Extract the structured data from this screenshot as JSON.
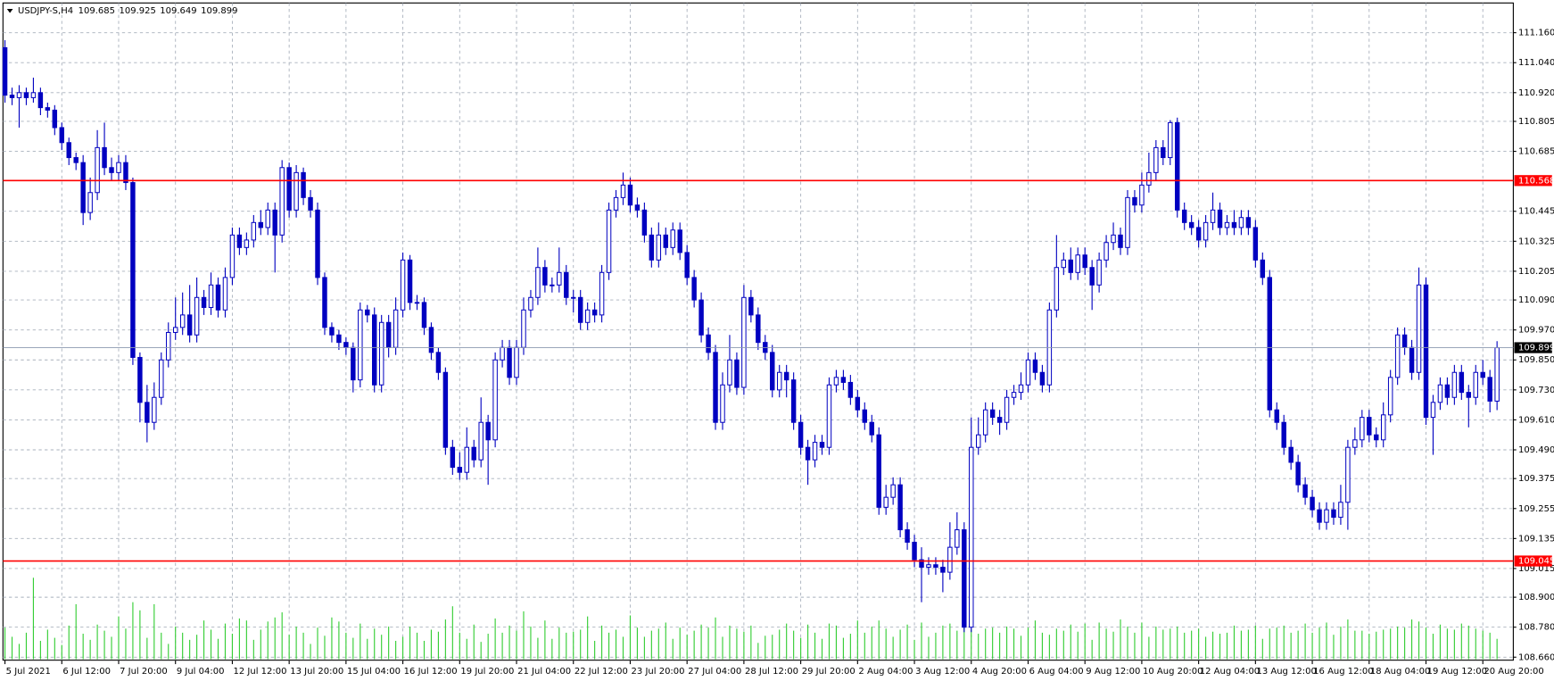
{
  "chart_data": {
    "type": "candlestick",
    "title": "USDJPY-S,H4",
    "up_color": "#0000c0",
    "down_color": "#0000c0",
    "up_fill": "#ffffff",
    "volume_color": "#32cd32",
    "grid": true,
    "ylim": [
      108.648,
      111.279
    ],
    "yticks": [
      {
        "value": 111.16,
        "label": "111.160"
      },
      {
        "value": 111.04,
        "label": "111.040"
      },
      {
        "value": 110.92,
        "label": "110.920"
      },
      {
        "value": 110.805,
        "label": "110.805"
      },
      {
        "value": 110.685,
        "label": "110.685"
      },
      {
        "value": 110.445,
        "label": "110.445"
      },
      {
        "value": 110.325,
        "label": "110.325"
      },
      {
        "value": 110.205,
        "label": "110.205"
      },
      {
        "value": 110.09,
        "label": "110.090"
      },
      {
        "value": 109.97,
        "label": "109.970"
      },
      {
        "value": 109.85,
        "label": "109.850"
      },
      {
        "value": 109.73,
        "label": "109.730"
      },
      {
        "value": 109.61,
        "label": "109.610"
      },
      {
        "value": 109.49,
        "label": "109.490"
      },
      {
        "value": 109.375,
        "label": "109.375"
      },
      {
        "value": 109.255,
        "label": "109.255"
      },
      {
        "value": 109.135,
        "label": "109.135"
      },
      {
        "value": 109.015,
        "label": "109.015"
      },
      {
        "value": 108.9,
        "label": "108.900"
      },
      {
        "value": 108.78,
        "label": "108.780"
      },
      {
        "value": 108.66,
        "label": "108.660"
      }
    ],
    "levels": [
      {
        "value": 110.568,
        "color": "#ff0000"
      },
      {
        "value": 109.045,
        "color": "#ff0000"
      }
    ],
    "categories": [
      "5 Jul 2021",
      null,
      null,
      null,
      null,
      null,
      null,
      null,
      "6 Jul 12:00",
      null,
      null,
      null,
      null,
      null,
      null,
      null,
      "7 Jul 20:00",
      null,
      null,
      null,
      null,
      null,
      null,
      null,
      "9 Jul 04:00",
      null,
      null,
      null,
      null,
      null,
      null,
      null,
      "12 Jul 12:00",
      null,
      null,
      null,
      null,
      null,
      null,
      null,
      "13 Jul 20:00",
      null,
      null,
      null,
      null,
      null,
      null,
      null,
      "15 Jul 04:00",
      null,
      null,
      null,
      null,
      null,
      null,
      null,
      "16 Jul 12:00",
      null,
      null,
      null,
      null,
      null,
      null,
      null,
      "19 Jul 20:00",
      null,
      null,
      null,
      null,
      null,
      null,
      null,
      "21 Jul 04:00",
      null,
      null,
      null,
      null,
      null,
      null,
      null,
      "22 Jul 12:00",
      null,
      null,
      null,
      null,
      null,
      null,
      null,
      "23 Jul 20:00",
      null,
      null,
      null,
      null,
      null,
      null,
      null,
      "27 Jul 04:00",
      null,
      null,
      null,
      null,
      null,
      null,
      null,
      "28 Jul 12:00",
      null,
      null,
      null,
      null,
      null,
      null,
      null,
      "29 Jul 20:00",
      null,
      null,
      null,
      null,
      null,
      null,
      null,
      "2 Aug 04:00",
      null,
      null,
      null,
      null,
      null,
      null,
      null,
      "3 Aug 12:00",
      null,
      null,
      null,
      null,
      null,
      null,
      null,
      "4 Aug 20:00",
      null,
      null,
      null,
      null,
      null,
      null,
      null,
      "6 Aug 04:00",
      null,
      null,
      null,
      null,
      null,
      null,
      null,
      "9 Aug 12:00",
      null,
      null,
      null,
      null,
      null,
      null,
      null,
      "10 Aug 20:00",
      null,
      null,
      null,
      null,
      null,
      null,
      null,
      "12 Aug 04:00",
      null,
      null,
      null,
      null,
      null,
      null,
      null,
      "13 Aug 12:00",
      null,
      null,
      null,
      null,
      null,
      null,
      null,
      "16 Aug 12:00",
      null,
      null,
      null,
      null,
      null,
      null,
      null,
      "18 Aug 04:00",
      null,
      null,
      null,
      null,
      null,
      null,
      null,
      "19 Aug 12:00",
      null,
      null,
      null,
      null,
      null,
      null,
      null,
      "20 Aug 20:00",
      null,
      null
    ],
    "open": [
      111.1,
      110.91,
      110.9,
      110.92,
      110.9,
      110.92,
      110.86,
      110.85,
      110.78,
      110.72,
      110.66,
      110.64,
      110.44,
      110.52,
      110.7,
      110.62,
      110.6,
      110.64,
      110.56,
      109.86,
      109.68,
      109.6,
      109.7,
      109.85,
      109.96,
      109.98,
      110.03,
      109.95,
      110.1,
      110.06,
      110.15,
      110.05,
      110.18,
      110.35,
      110.3,
      110.33,
      110.4,
      110.38,
      110.45,
      110.35,
      110.62,
      110.45,
      110.6,
      110.5,
      110.45,
      110.18,
      109.98,
      109.95,
      109.92,
      109.9,
      109.77,
      110.05,
      110.03,
      109.75,
      110.0,
      109.9,
      110.05,
      110.25,
      110.08,
      110.08,
      109.98,
      109.88,
      109.8,
      109.5,
      109.42,
      109.4,
      109.5,
      109.45,
      109.6,
      109.53,
      109.85,
      109.9,
      109.78,
      109.9,
      110.05,
      110.1,
      110.22,
      110.15,
      110.15,
      110.2,
      110.1,
      110.1,
      110.0,
      110.05,
      110.03,
      110.2,
      110.45,
      110.5,
      110.55,
      110.47,
      110.45,
      110.35,
      110.25,
      110.35,
      110.3,
      110.37,
      110.28,
      110.18,
      110.09,
      109.95,
      109.88,
      109.6,
      109.75,
      109.85,
      109.74,
      110.1,
      110.03,
      109.92,
      109.88,
      109.73,
      109.8,
      109.77,
      109.6,
      109.5,
      109.45,
      109.52,
      109.5,
      109.75,
      109.78,
      109.76,
      109.7,
      109.65,
      109.6,
      109.55,
      109.26,
      109.3,
      109.35,
      109.17,
      109.12,
      109.05,
      109.02,
      109.03,
      109.02,
      109.0,
      109.1,
      109.17,
      108.78,
      109.5,
      109.55,
      109.65,
      109.62,
      109.6,
      109.7,
      109.72,
      109.75,
      109.85,
      109.8,
      109.75,
      110.05,
      110.22,
      110.25,
      110.2,
      110.27,
      110.22,
      110.15,
      110.25,
      110.32,
      110.35,
      110.3,
      110.5,
      110.47,
      110.55,
      110.6,
      110.7,
      110.66,
      110.8,
      110.45,
      110.4,
      110.38,
      110.33,
      110.4,
      110.45,
      110.38,
      110.4,
      110.38,
      110.42,
      110.38,
      110.25,
      110.18,
      109.65,
      109.6,
      109.5,
      109.44,
      109.35,
      109.3,
      109.25,
      109.2,
      109.25,
      109.22,
      109.28,
      109.5,
      109.53,
      109.62,
      109.55,
      109.53,
      109.63,
      109.78,
      109.95,
      109.9,
      109.8,
      110.15,
      109.62,
      109.68,
      109.75,
      109.7,
      109.8,
      109.72,
      109.7,
      109.8,
      109.78,
      109.685
    ],
    "high": [
      111.13,
      110.94,
      110.95,
      110.94,
      110.98,
      110.94,
      110.88,
      110.87,
      110.8,
      110.74,
      110.68,
      110.67,
      110.58,
      110.77,
      110.8,
      110.66,
      110.67,
      110.67,
      110.58,
      109.88,
      109.75,
      109.76,
      109.88,
      110.0,
      110.1,
      110.12,
      110.15,
      110.18,
      110.13,
      110.2,
      110.18,
      110.22,
      110.38,
      110.38,
      110.36,
      110.43,
      110.45,
      110.48,
      110.48,
      110.65,
      110.64,
      110.63,
      110.62,
      110.53,
      110.48,
      110.2,
      110.0,
      109.97,
      109.94,
      109.92,
      110.08,
      110.07,
      110.06,
      110.03,
      110.03,
      110.1,
      110.28,
      110.27,
      110.11,
      110.1,
      110.0,
      109.9,
      109.82,
      109.53,
      109.48,
      109.58,
      109.53,
      109.7,
      109.63,
      109.88,
      109.93,
      109.93,
      109.93,
      110.1,
      110.13,
      110.3,
      110.25,
      110.18,
      110.3,
      110.23,
      110.13,
      110.13,
      110.08,
      110.08,
      110.23,
      110.48,
      110.53,
      110.6,
      110.58,
      110.5,
      110.48,
      110.38,
      110.4,
      110.38,
      110.4,
      110.4,
      110.31,
      110.21,
      110.12,
      109.98,
      109.91,
      109.8,
      109.95,
      109.88,
      110.15,
      110.13,
      110.06,
      109.95,
      109.91,
      109.83,
      109.83,
      109.8,
      109.63,
      109.53,
      109.55,
      109.55,
      109.78,
      109.81,
      109.81,
      109.79,
      109.73,
      109.68,
      109.63,
      109.58,
      109.35,
      109.38,
      109.38,
      109.2,
      109.15,
      109.1,
      109.06,
      109.06,
      109.05,
      109.2,
      109.24,
      109.2,
      109.62,
      109.62,
      109.68,
      109.68,
      109.65,
      109.73,
      109.75,
      109.8,
      109.88,
      109.88,
      109.83,
      110.08,
      110.35,
      110.28,
      110.3,
      110.3,
      110.3,
      110.25,
      110.28,
      110.35,
      110.4,
      110.38,
      110.53,
      110.53,
      110.6,
      110.68,
      110.73,
      110.73,
      110.81,
      110.82,
      110.48,
      110.43,
      110.41,
      110.43,
      110.52,
      110.48,
      110.43,
      110.45,
      110.45,
      110.45,
      110.41,
      110.28,
      110.21,
      109.68,
      109.63,
      109.53,
      109.47,
      109.38,
      109.33,
      109.28,
      109.28,
      109.28,
      109.35,
      109.53,
      109.58,
      109.65,
      109.65,
      109.58,
      109.68,
      109.81,
      109.98,
      109.98,
      109.93,
      110.22,
      110.18,
      109.71,
      109.78,
      109.78,
      109.83,
      109.83,
      109.75,
      109.83,
      109.85,
      109.81,
      109.925
    ],
    "low": [
      110.88,
      110.87,
      110.78,
      110.87,
      110.88,
      110.83,
      110.82,
      110.75,
      110.69,
      110.63,
      110.61,
      110.39,
      110.41,
      110.49,
      110.59,
      110.57,
      110.57,
      110.53,
      109.83,
      109.6,
      109.52,
      109.57,
      109.67,
      109.82,
      109.93,
      109.95,
      109.92,
      109.92,
      110.03,
      110.03,
      110.02,
      110.02,
      110.15,
      110.27,
      110.27,
      110.3,
      110.35,
      110.35,
      110.2,
      110.32,
      110.42,
      110.42,
      110.47,
      110.42,
      110.15,
      109.95,
      109.92,
      109.89,
      109.87,
      109.72,
      109.74,
      110.0,
      109.72,
      109.72,
      109.86,
      109.87,
      110.02,
      110.05,
      110.05,
      109.95,
      109.85,
      109.77,
      109.47,
      109.39,
      109.37,
      109.37,
      109.42,
      109.42,
      109.35,
      109.5,
      109.82,
      109.75,
      109.75,
      109.87,
      110.02,
      110.07,
      110.12,
      110.12,
      110.12,
      110.07,
      110.04,
      109.97,
      109.97,
      110.0,
      110.0,
      110.17,
      110.42,
      110.47,
      110.44,
      110.42,
      110.32,
      110.22,
      110.22,
      110.27,
      110.27,
      110.25,
      110.15,
      110.06,
      109.92,
      109.85,
      109.57,
      109.57,
      109.72,
      109.71,
      109.71,
      110.0,
      109.89,
      109.85,
      109.7,
      109.7,
      109.7,
      109.57,
      109.47,
      109.35,
      109.42,
      109.47,
      109.47,
      109.72,
      109.73,
      109.67,
      109.62,
      109.57,
      109.52,
      109.23,
      109.23,
      109.27,
      109.14,
      109.09,
      109.02,
      108.88,
      108.99,
      108.99,
      108.92,
      108.97,
      109.07,
      108.76,
      108.76,
      109.47,
      109.52,
      109.59,
      109.55,
      109.57,
      109.67,
      109.69,
      109.72,
      109.77,
      109.72,
      109.72,
      110.02,
      110.19,
      110.17,
      110.17,
      110.19,
      110.05,
      110.12,
      110.22,
      110.29,
      110.27,
      110.27,
      110.44,
      110.44,
      110.52,
      110.57,
      110.63,
      110.63,
      110.42,
      110.37,
      110.35,
      110.3,
      110.3,
      110.37,
      110.35,
      110.35,
      110.35,
      110.35,
      110.35,
      110.22,
      110.15,
      109.62,
      109.57,
      109.47,
      109.41,
      109.32,
      109.27,
      109.22,
      109.17,
      109.17,
      109.19,
      109.19,
      109.17,
      109.47,
      109.5,
      109.52,
      109.5,
      109.5,
      109.6,
      109.75,
      109.87,
      109.77,
      109.77,
      109.59,
      109.47,
      109.65,
      109.67,
      109.67,
      109.69,
      109.58,
      109.67,
      109.75,
      109.64,
      109.649
    ],
    "close": [
      110.91,
      110.9,
      110.92,
      110.9,
      110.92,
      110.86,
      110.85,
      110.78,
      110.72,
      110.66,
      110.64,
      110.44,
      110.52,
      110.7,
      110.62,
      110.6,
      110.64,
      110.56,
      109.86,
      109.68,
      109.6,
      109.7,
      109.85,
      109.96,
      109.98,
      110.03,
      109.95,
      110.1,
      110.06,
      110.15,
      110.05,
      110.18,
      110.35,
      110.3,
      110.33,
      110.4,
      110.38,
      110.45,
      110.35,
      110.62,
      110.45,
      110.6,
      110.5,
      110.45,
      110.18,
      109.98,
      109.95,
      109.92,
      109.9,
      109.77,
      110.05,
      110.03,
      109.75,
      110.0,
      109.9,
      110.05,
      110.25,
      110.08,
      110.08,
      109.98,
      109.88,
      109.8,
      109.5,
      109.42,
      109.4,
      109.5,
      109.45,
      109.6,
      109.53,
      109.85,
      109.9,
      109.78,
      109.9,
      110.05,
      110.1,
      110.22,
      110.15,
      110.15,
      110.2,
      110.1,
      110.1,
      110.0,
      110.05,
      110.03,
      110.2,
      110.45,
      110.5,
      110.55,
      110.47,
      110.45,
      110.35,
      110.25,
      110.35,
      110.3,
      110.37,
      110.28,
      110.18,
      110.09,
      109.95,
      109.88,
      109.6,
      109.75,
      109.85,
      109.74,
      110.1,
      110.03,
      109.92,
      109.88,
      109.73,
      109.8,
      109.77,
      109.6,
      109.5,
      109.45,
      109.52,
      109.5,
      109.75,
      109.78,
      109.76,
      109.7,
      109.65,
      109.6,
      109.55,
      109.26,
      109.3,
      109.35,
      109.17,
      109.12,
      109.05,
      109.02,
      109.03,
      109.02,
      109.0,
      109.1,
      109.17,
      108.78,
      109.5,
      109.55,
      109.65,
      109.62,
      109.6,
      109.7,
      109.72,
      109.75,
      109.85,
      109.8,
      109.75,
      110.05,
      110.22,
      110.25,
      110.2,
      110.27,
      110.22,
      110.15,
      110.25,
      110.32,
      110.35,
      110.3,
      110.5,
      110.47,
      110.55,
      110.6,
      110.7,
      110.66,
      110.8,
      110.45,
      110.4,
      110.38,
      110.33,
      110.4,
      110.45,
      110.38,
      110.4,
      110.38,
      110.42,
      110.38,
      110.25,
      110.18,
      109.65,
      109.6,
      109.5,
      109.44,
      109.35,
      109.3,
      109.25,
      109.2,
      109.25,
      109.22,
      109.28,
      109.5,
      109.53,
      109.62,
      109.55,
      109.53,
      109.63,
      109.78,
      109.95,
      109.9,
      109.8,
      110.15,
      109.62,
      109.68,
      109.75,
      109.7,
      109.8,
      109.72,
      109.7,
      109.8,
      109.78,
      109.685,
      109.899
    ],
    "volume": [
      3100,
      2200,
      1500,
      2600,
      8000,
      1800,
      2900,
      2100,
      1400,
      3300,
      5400,
      2500,
      1900,
      3400,
      2800,
      2200,
      4200,
      3000,
      5600,
      4800,
      2100,
      5400,
      2600,
      1500,
      3200,
      2600,
      1900,
      2400,
      3800,
      2900,
      2000,
      3500,
      2500,
      4000,
      3800,
      1900,
      2900,
      3700,
      4100,
      4600,
      2400,
      3200,
      2600,
      1500,
      3100,
      2300,
      4100,
      3700,
      2600,
      2100,
      3500,
      2000,
      3000,
      2400,
      3200,
      1800,
      2200,
      3200,
      2600,
      1800,
      2900,
      2700,
      3900,
      5200,
      2600,
      2000,
      3400,
      1700,
      2500,
      4000,
      2600,
      3300,
      2800,
      4700,
      3200,
      2100,
      3800,
      2000,
      3100,
      2600,
      2700,
      2900,
      4200,
      1800,
      3300,
      2600,
      2900,
      2200,
      4300,
      3100,
      2200,
      2800,
      3000,
      3600,
      2000,
      3100,
      2400,
      2800,
      3400,
      3100,
      4100,
      2200,
      3300,
      3000,
      2700,
      3300,
      1600,
      2300,
      2400,
      2900,
      3500,
      2800,
      2100,
      3400,
      2600,
      2000,
      3500,
      3300,
      2100,
      2500,
      3800,
      2600,
      3200,
      3800,
      3000,
      2200,
      2900,
      3400,
      1900,
      3600,
      2200,
      2600,
      3300,
      3500,
      2800,
      3300,
      2900,
      2500,
      3000,
      3100,
      2600,
      3200,
      3000,
      2300,
      3100,
      3800,
      2600,
      2400,
      3000,
      2800,
      3400,
      2700,
      3500,
      1900,
      3600,
      3000,
      2700,
      3900,
      3200,
      2600,
      3600,
      2200,
      3200,
      2900,
      3000,
      3200,
      2600,
      2800,
      3000,
      2200,
      2700,
      2500,
      2600,
      3300,
      2800,
      2900,
      3300,
      2000,
      3000,
      3100,
      3300,
      2600,
      2800,
      3500,
      2600,
      3100,
      3600,
      2400,
      3200,
      3900,
      2800,
      2800,
      2500,
      2700,
      2900,
      3000,
      3200,
      3100,
      3900,
      3700,
      3100,
      2500,
      3400,
      3000,
      2900,
      3500,
      3300,
      3000,
      2800,
      2600,
      2000
    ]
  }
}
